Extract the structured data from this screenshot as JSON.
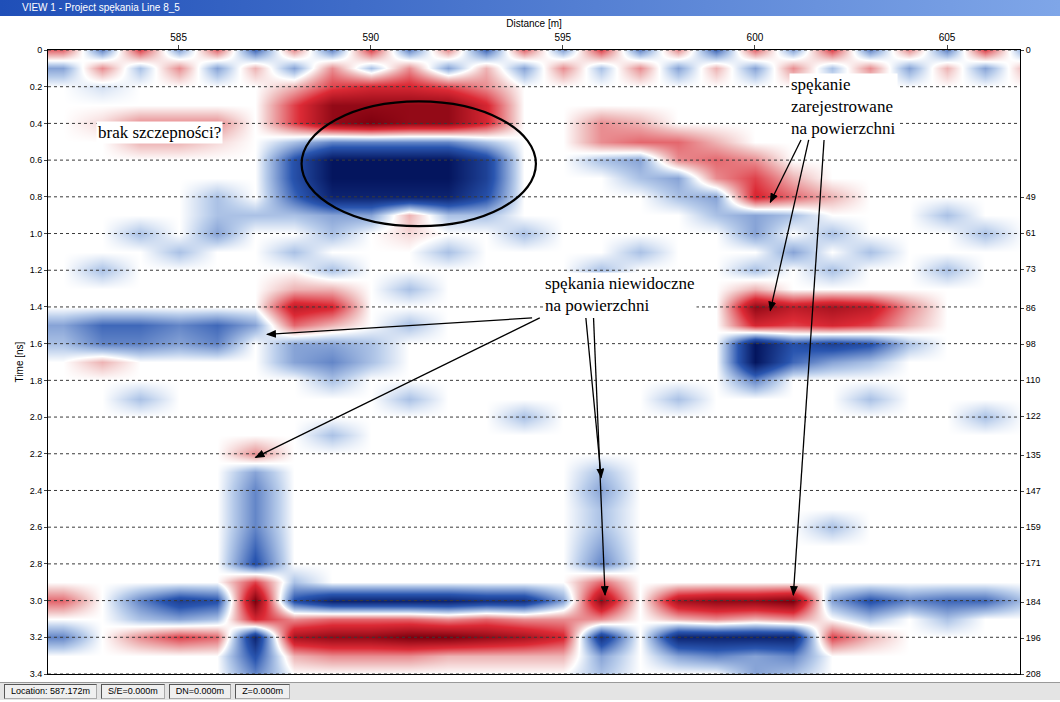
{
  "chart_data": {
    "type": "heatmap",
    "title": "VIEW 1 - Project spękania Line 8_5",
    "x_label": "Distance [m]",
    "y_label": "Time [ns]",
    "x": [
      582,
      583,
      584,
      585,
      586,
      587,
      588,
      589,
      590,
      591,
      592,
      593,
      594,
      595,
      596,
      597,
      598,
      599,
      600,
      601,
      602,
      603,
      604,
      605,
      606,
      607
    ],
    "y": [
      0,
      0.1,
      0.2,
      0.3,
      0.4,
      0.5,
      0.6,
      0.7,
      0.8,
      0.9,
      1.0,
      1.1,
      1.2,
      1.3,
      1.4,
      1.5,
      1.6,
      1.7,
      1.8,
      1.9,
      2.0,
      2.1,
      2.2,
      2.3,
      2.4,
      2.5,
      2.6,
      2.7,
      2.8,
      2.9,
      3.0,
      3.1,
      3.2,
      3.3,
      3.4
    ],
    "cells": [
      [
        0.4,
        -0.4,
        0.5,
        -0.3,
        0.4,
        -0.5,
        0.3,
        -0.4,
        0.5,
        -0.4,
        0.3,
        -0.5,
        0.4,
        -0.3,
        0.5,
        -0.4,
        0.3,
        -0.5,
        0.4,
        -0.3,
        0.5,
        -0.4,
        0.3,
        -0.4,
        0.5,
        -0.3
      ],
      [
        -0.3,
        0.3,
        -0.2,
        0.3,
        -0.3,
        0.2,
        -0.3,
        0.3,
        -0.2,
        0.3,
        -0.3,
        0.2,
        -0.3,
        0.3,
        -0.2,
        0.3,
        -0.3,
        0.2,
        -0.3,
        0.3,
        -0.2,
        0.3,
        -0.3,
        0.2,
        -0.3,
        0.2
      ],
      [
        0,
        -0.1,
        0,
        0,
        0,
        0,
        0.2,
        0.5,
        0.6,
        0.6,
        0.5,
        0.3,
        0,
        0,
        0,
        0,
        0,
        0,
        0,
        0,
        0,
        0,
        0,
        0,
        0,
        0
      ],
      [
        0,
        0,
        0,
        0,
        0,
        0,
        0.5,
        0.9,
        0.9,
        0.9,
        0.9,
        0.6,
        0,
        0,
        0,
        0,
        0,
        0,
        0,
        0,
        0,
        0,
        0,
        0,
        0,
        0
      ],
      [
        0,
        0.1,
        0.3,
        0.3,
        0.3,
        0,
        0.5,
        0.9,
        1,
        0.9,
        0.9,
        0.6,
        0,
        0,
        0.3,
        0.2,
        0,
        0,
        0,
        0,
        0,
        0,
        0,
        0,
        0,
        0
      ],
      [
        0,
        0,
        0.2,
        0.2,
        0.1,
        0,
        -0.2,
        -0.4,
        -0.4,
        -0.4,
        -0.4,
        -0.2,
        0,
        0,
        0.3,
        0.4,
        0.4,
        0.2,
        0,
        0,
        0,
        0,
        0,
        0,
        0,
        0
      ],
      [
        0,
        0,
        0,
        0,
        0,
        0,
        -0.6,
        -1,
        -1,
        -1,
        -1,
        -0.7,
        0,
        0,
        -0.2,
        -0.3,
        0.3,
        0.4,
        0.3,
        0,
        0,
        0,
        0,
        0,
        0,
        0
      ],
      [
        0,
        0,
        0,
        0,
        0,
        0,
        -0.6,
        -1,
        -1,
        -1,
        -1,
        -0.7,
        0,
        0,
        0,
        -0.2,
        -0.3,
        0.3,
        0.5,
        0.2,
        0,
        0,
        0,
        0,
        0,
        0
      ],
      [
        0,
        0,
        0,
        0,
        -0.2,
        0,
        -0.5,
        -0.9,
        -0.9,
        -0.9,
        -0.9,
        -0.6,
        0,
        0,
        0,
        0,
        -0.2,
        -0.3,
        0.6,
        0.4,
        0.2,
        0,
        0,
        0,
        0,
        0
      ],
      [
        0,
        0,
        0,
        0,
        -0.2,
        -0.2,
        -0.2,
        -0.3,
        -0.3,
        0.2,
        -0.2,
        -0.2,
        0,
        0,
        0,
        0,
        0,
        -0.2,
        -0.3,
        -0.2,
        0,
        0,
        0,
        -0.2,
        0,
        0
      ],
      [
        0,
        0,
        -0.2,
        0,
        -0.3,
        0,
        0,
        -0.2,
        0,
        0.1,
        0,
        0,
        -0.2,
        0,
        0,
        0,
        0,
        0,
        -0.3,
        0,
        -0.2,
        0,
        0,
        0,
        -0.2,
        0
      ],
      [
        0,
        0,
        0,
        -0.2,
        0,
        0,
        -0.2,
        0,
        0,
        0,
        -0.2,
        0,
        0,
        0,
        0,
        -0.2,
        0,
        0,
        0,
        -0.3,
        0,
        -0.2,
        0,
        0,
        0,
        0
      ],
      [
        0,
        -0.2,
        0,
        0,
        0,
        0,
        0,
        -0.2,
        0,
        0,
        0,
        0,
        0,
        0,
        -0.2,
        0,
        0,
        0,
        -0.2,
        0,
        -0.2,
        0,
        0,
        -0.2,
        0,
        0
      ],
      [
        0,
        0,
        0,
        0,
        0,
        0,
        0.2,
        0.2,
        0,
        -0.2,
        0,
        0,
        0,
        0,
        0,
        0,
        0,
        0,
        0.2,
        0,
        0,
        0,
        0,
        0,
        0,
        0
      ],
      [
        0,
        0,
        0,
        0,
        0,
        0,
        0.7,
        0.6,
        0,
        0,
        0,
        0,
        0,
        0,
        0,
        0,
        0,
        0,
        0.9,
        0.7,
        0.8,
        0.7,
        0.3,
        0,
        0,
        0
      ],
      [
        -0.3,
        -0.5,
        -0.5,
        -0.4,
        -0.5,
        -0.3,
        0.4,
        0.2,
        0,
        -0.2,
        0,
        0,
        0,
        0,
        0,
        0,
        0,
        0,
        0.6,
        0.5,
        0.6,
        0.5,
        0.2,
        0,
        0,
        0
      ],
      [
        -0.2,
        -0.4,
        -0.4,
        -0.3,
        -0.4,
        0,
        -0.3,
        -0.3,
        -0.2,
        0,
        0,
        0,
        0,
        0,
        0,
        0,
        0,
        0,
        -1,
        -0.6,
        -0.7,
        -0.6,
        -0.2,
        0,
        0,
        0
      ],
      [
        0,
        0.2,
        0,
        0,
        0,
        0,
        -0.3,
        -0.4,
        -0.2,
        0,
        0,
        0,
        0,
        0,
        0,
        0,
        0,
        0,
        -1,
        -0.5,
        -0.3,
        -0.2,
        0,
        0,
        0,
        0
      ],
      [
        0,
        0,
        0,
        0,
        0,
        0,
        0,
        -0.2,
        0,
        0,
        0,
        0,
        0,
        0,
        0,
        0,
        0,
        0,
        -0.4,
        0,
        0,
        0,
        0,
        0,
        0,
        0
      ],
      [
        0,
        0,
        -0.2,
        0,
        0,
        0,
        0,
        0,
        0,
        -0.2,
        0,
        0,
        0,
        0,
        0,
        0,
        -0.2,
        0,
        0,
        0,
        0,
        -0.2,
        0,
        0,
        0,
        0
      ],
      [
        0,
        0,
        0,
        0,
        0,
        0,
        0,
        0,
        0,
        0,
        0,
        0,
        -0.2,
        0,
        0,
        0,
        0,
        0,
        0,
        0,
        0,
        0,
        0,
        0,
        -0.2,
        0
      ],
      [
        0,
        0,
        0,
        0,
        0,
        0,
        0,
        -0.2,
        0,
        0,
        0,
        0,
        0,
        0,
        0,
        0,
        0,
        0,
        0,
        0,
        0,
        0,
        0,
        0,
        0,
        0
      ],
      [
        0,
        0,
        0,
        0,
        0,
        0.3,
        0,
        0,
        0,
        0,
        0,
        0,
        0,
        0,
        0,
        0,
        0,
        0,
        0,
        0,
        0,
        0,
        0,
        0,
        0,
        0
      ],
      [
        0,
        0,
        0,
        0,
        0,
        -0.3,
        0,
        0,
        0,
        0,
        0,
        0,
        0,
        0,
        -0.2,
        0,
        0,
        0,
        0,
        0,
        0,
        0,
        0,
        0,
        0,
        0
      ],
      [
        0,
        0,
        0,
        0,
        0,
        -0.4,
        0,
        0,
        0,
        0,
        0,
        0,
        0,
        0,
        -0.3,
        0,
        0,
        0,
        0,
        0,
        0,
        0,
        0,
        0,
        0,
        0
      ],
      [
        0,
        0,
        0,
        0,
        0,
        -0.4,
        0,
        0,
        0,
        0,
        0,
        0,
        0,
        0,
        -0.2,
        0,
        0,
        0,
        0,
        0,
        0,
        0,
        0,
        0,
        0,
        0
      ],
      [
        0,
        0,
        0,
        0,
        0,
        -0.4,
        0,
        0,
        0,
        0,
        0,
        0,
        0,
        0,
        -0.2,
        0,
        0,
        0,
        0,
        0,
        -0.2,
        0,
        0,
        0,
        0,
        0
      ],
      [
        0,
        0,
        0,
        0,
        0,
        -0.5,
        0,
        0,
        0,
        0,
        0,
        0,
        0,
        0,
        -0.3,
        0,
        0,
        0,
        0,
        0,
        0,
        0,
        0,
        0,
        0,
        0
      ],
      [
        0,
        0,
        0,
        0,
        0,
        -0.6,
        0,
        0,
        0,
        0,
        0,
        0,
        0,
        0,
        -0.4,
        0,
        0,
        0,
        0,
        0,
        0,
        0,
        0,
        0,
        0,
        0
      ],
      [
        0,
        0,
        0,
        0,
        0,
        0.5,
        -0.2,
        0,
        0,
        0,
        0,
        0,
        0,
        0,
        0.4,
        0,
        0,
        0,
        0,
        0,
        0,
        0,
        0,
        0,
        0,
        0
      ],
      [
        0.4,
        0,
        -0.4,
        -0.7,
        -0.6,
        1,
        -0.6,
        -0.9,
        -0.9,
        -0.9,
        -0.9,
        -0.8,
        -0.8,
        -0.3,
        0.9,
        0,
        0.8,
        0.9,
        0.9,
        1,
        -0.3,
        -0.6,
        -0.4,
        -0.5,
        -0.5,
        -0.2
      ],
      [
        0,
        0,
        -0.2,
        -0.3,
        -0.2,
        0.6,
        0.3,
        0.4,
        0.4,
        0.4,
        0.3,
        0.4,
        0.3,
        0.3,
        0.3,
        0,
        0.2,
        0.3,
        0.2,
        0.3,
        0,
        -0.2,
        0,
        -0.2,
        0,
        0
      ],
      [
        -0.4,
        0,
        0.3,
        0.5,
        0.4,
        -0.9,
        0.8,
        0.9,
        0.9,
        1,
        1,
        0.9,
        0.8,
        0.6,
        -0.8,
        0,
        -0.9,
        -0.9,
        -0.9,
        -0.9,
        0.5,
        0.2,
        0,
        0,
        0,
        0
      ],
      [
        0,
        0,
        0,
        0,
        0,
        -0.6,
        0.2,
        0.3,
        0.3,
        0.3,
        0.2,
        0.2,
        0.2,
        0.2,
        -0.3,
        0,
        -0.3,
        -0.4,
        -0.3,
        -0.4,
        0,
        0,
        0,
        0,
        0,
        0
      ],
      [
        0,
        0,
        0,
        0,
        0,
        -0.4,
        0,
        0,
        0,
        0,
        0,
        0,
        0,
        0,
        -0.2,
        0,
        0,
        0,
        -0.3,
        -0.2,
        0,
        0,
        0,
        0,
        0,
        0
      ]
    ],
    "color_range": [
      -1,
      1
    ],
    "xlim": [
      581.6,
      606.9
    ],
    "xticks": [
      585,
      590,
      595,
      600,
      605
    ],
    "ylim": [
      0,
      3.4
    ],
    "yticks": [
      0,
      0.2,
      0.4,
      0.6,
      0.8,
      {
        "value": 1,
        "label": "1.0"
      },
      1.2,
      1.4,
      1.6,
      1.8,
      {
        "value": 2,
        "label": "2.0"
      },
      2.2,
      2.4,
      2.6,
      2.8,
      {
        "value": 3,
        "label": "3.0"
      },
      3.2,
      3.4
    ],
    "y2lim": [
      0,
      208
    ],
    "y2ticks": [
      0,
      49,
      61,
      73,
      86,
      98,
      110,
      122,
      135,
      147,
      159,
      171,
      184,
      196,
      208
    ],
    "grid": true,
    "annotations": [
      {
        "lines": [
          "brak szczepności?"
        ]
      },
      {
        "lines": [
          "spękanie",
          "zarejestrowane",
          "na powierzchni"
        ]
      },
      {
        "lines": [
          "spękania niewidoczne",
          "na powierzchni"
        ]
      }
    ]
  },
  "status_bar": [
    "Location: 587.172m",
    "S/E=0.000m",
    "DN=0.000m",
    "Z=0.000m"
  ]
}
